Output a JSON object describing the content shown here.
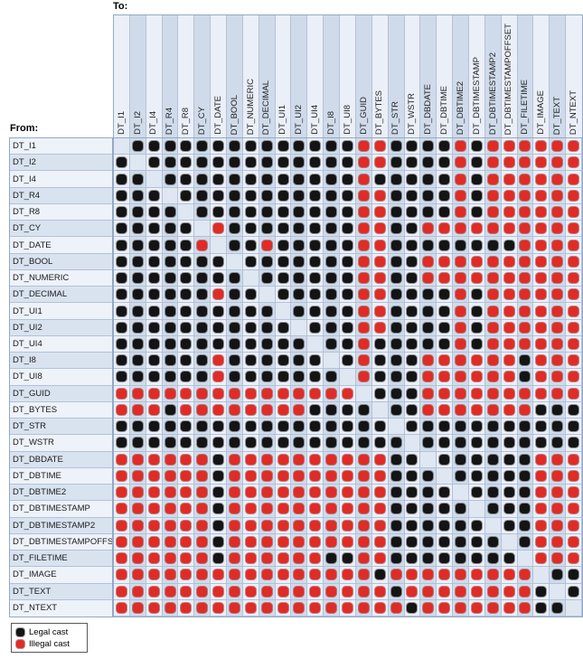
{
  "labels": {
    "to": "To:",
    "from": "From:"
  },
  "types": [
    "DT_I1",
    "DT_I2",
    "DT_I4",
    "DT_R4",
    "DT_R8",
    "DT_CY",
    "DT_DATE",
    "DT_BOOL",
    "DT_NUMERIC",
    "DT_DECIMAL",
    "DT_UI1",
    "DT_UI2",
    "DT_UI4",
    "DT_I8",
    "DT_UI8",
    "DT_GUID",
    "DT_BYTES",
    "DT_STR",
    "DT_WSTR",
    "DT_DBDATE",
    "DT_DBTIME",
    "DT_DBTIME2",
    "DT_DBTIMESTAMP",
    "DT_DBTIMESTAMP2",
    "DT_DBTIMESTAMPOFFSET",
    "DT_FILETIME",
    "DT_IMAGE",
    "DT_TEXT",
    "DT_NTEXT"
  ],
  "cell_codes": {
    "L": "legal cast (black dot)",
    "X": "illegal cast (red dot)",
    "D": "diagonal self-cast (empty cell)"
  },
  "matrix": [
    "DLLLLLLLLLLLLLLXXLLLLXLXXXXXX",
    "LDLLLLLLLLLLLLLXXLLLLXLXXXXXX",
    "LLDLLLLLLLLLLLLXLLLLLXLXXXXXX",
    "LLLDLLLLLLLLLLLXXLLLLXLXXXXXX",
    "LLLLDLLLLLLLLLLXXLLLLXLXXXXXX",
    "LLLLLDXLLLLLLLLXXLLXXXXXXXXXX",
    "LLLLLXDLLXLLLLLXXLLLLLLLLXXXX",
    "LLLLLLLDLLLLLLLXXLLXXXXXXXXXX",
    "LLLLLLLLDLLLLLLXXLLXXXXXXXXXX",
    "LLLLLLXLLDLLLLLXXLLLLXLXXXXXX",
    "LLLLLLLLLLDLLLLXXLLLLXLXXXXXX",
    "LLLLLLLLLLLDLLLXXLLLLXLXXXXXX",
    "LLLLLLLLLLLLDLLXLLLLLXLXXXXXX",
    "LLLLLLXLLLLLLDLXLLLXXXXXXLXXX",
    "LLLLLLXLLLLLLLDXLLLXXXXXXLXXX",
    "XXXXXXXXXXXXXXXDLLLXXXXXXXXXX",
    "XXXLXXXXXXXXLLLLDLLXXXXXXXLLL",
    "LLLLLLLLLLLLLLLLLDLLLLLLLLLLL",
    "LLLLLLLLLLLLLLLLLLDLLLLLLLLLL",
    "XXXXXXLXXXXXXXXXXLLDLLLLLLXXX",
    "XXXXXXLXXXXXXXXXXLLLDLLLLLXXX",
    "XXXXXXLXXXXXXXXXXLLLLDLLLLXXX",
    "XXXXXXLXXXXXXXXXXLLLLLDLLLXXX",
    "XXXXXXLXXXXXXXXXXLLLLLLDLLXXX",
    "XXXXXXLXXXXXXXXXXLLLLLLLDLXXX",
    "XXXXXXLXXXXXXLLXXLLLLLLLLDXXX",
    "XXXXXXXXXXXXXXXXLXXXXXXXXXDLL",
    "XXXXXXXXXXXXXXXXXLXXXXXXXXLDL",
    "XXXXXXXXXXXXXXXXXXLXXXXXXXLLD"
  ],
  "legend": {
    "legal": "Legal cast",
    "illegal": "Illegal cast"
  },
  "colors": {
    "legal_dot": "#141414",
    "illegal_dot": "#e12b25",
    "column_stripe_light": "#ebeff8",
    "column_stripe_dark": "#cfdbea",
    "row_stripe_light": "#eef2f9",
    "row_stripe_dark": "#d9e3f0",
    "diagonal_cell": "#dfe7f2",
    "grid_line": "#b3c2d8"
  }
}
